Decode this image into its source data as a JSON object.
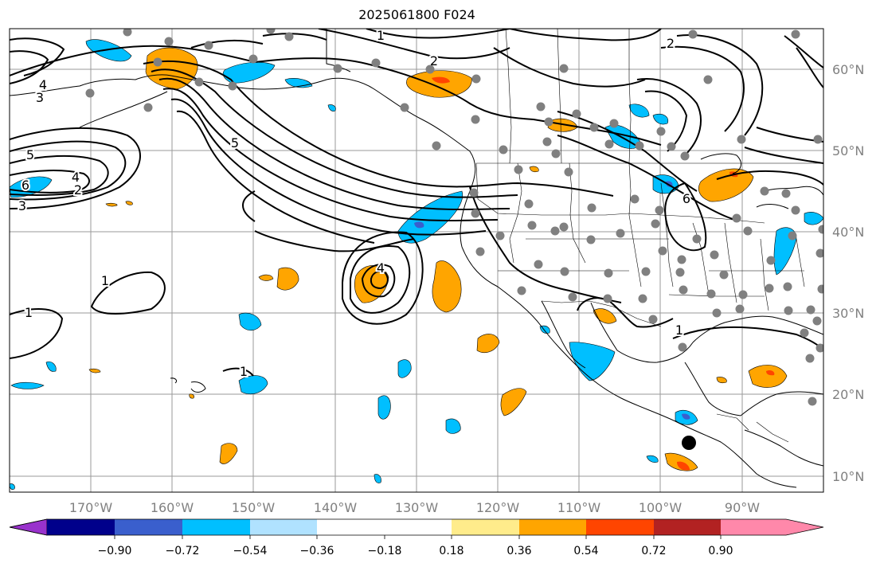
{
  "title": "2025061800 F024",
  "lon_ticks": [
    "170°W",
    "160°W",
    "150°W",
    "140°W",
    "130°W",
    "120°W",
    "110°W",
    "100°W",
    "90°W"
  ],
  "lat_ticks": [
    "60°N",
    "50°N",
    "40°N",
    "30°N",
    "20°N",
    "10°N"
  ],
  "colorbar": {
    "ticks": [
      "−0.90",
      "−0.72",
      "−0.54",
      "−0.36",
      "−0.18",
      "0.18",
      "0.36",
      "0.54",
      "0.72",
      "0.90"
    ],
    "colors": [
      "#9932cc",
      "#00008b",
      "#3a5fcd",
      "#00bfff",
      "#b0e2ff",
      "#ffffff",
      "#ffec8b",
      "#ffa500",
      "#ff4500",
      "#b22222",
      "#ff88aa"
    ]
  },
  "map": {
    "extent": {
      "lon_min": -180,
      "lon_max": -80,
      "lat_min": 8,
      "lat_max": 65
    },
    "contour_labels": [
      "1",
      "1",
      "1",
      "2",
      "3",
      "4",
      "5",
      "6",
      "2",
      "3",
      "4",
      "5",
      "6",
      "1",
      "2",
      "4",
      "1"
    ],
    "marker": {
      "lon": -96.9,
      "lat": 13.8,
      "color": "#000000"
    },
    "station_color": "#808080",
    "positive_fill": "#ffa500",
    "negative_fill": "#00bfff",
    "grid": true
  }
}
